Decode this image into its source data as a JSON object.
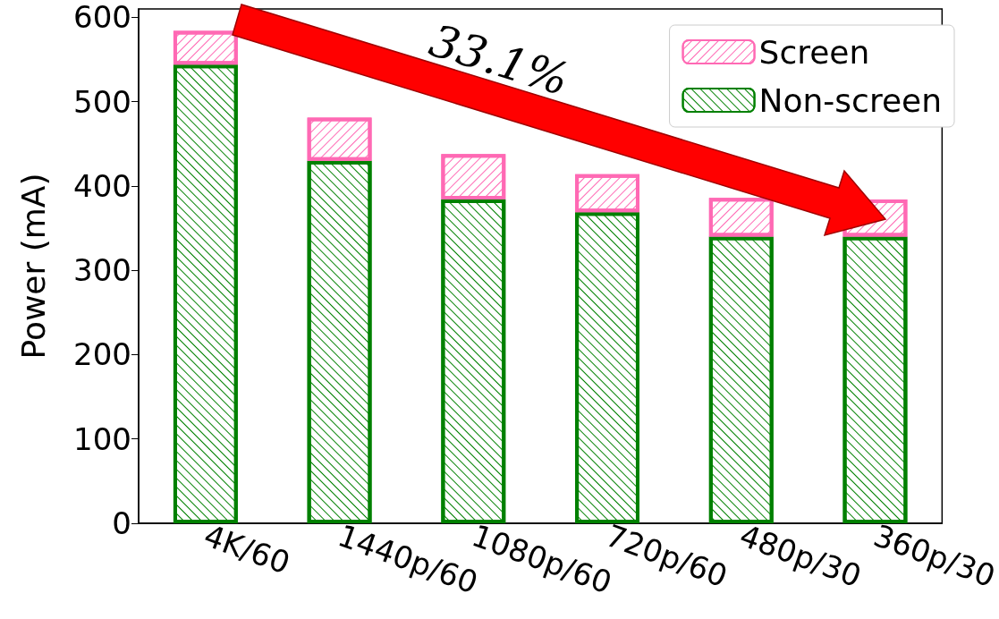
{
  "chart_data": {
    "type": "bar",
    "stacked": true,
    "ylabel": "Power (mA)",
    "categories": [
      "4K/60",
      "1440p/60",
      "1080p/60",
      "720p/60",
      "480p/30",
      "360p/30"
    ],
    "series": [
      {
        "name": "Non-screen",
        "color": "#008000",
        "values": [
          544,
          430,
          384,
          369,
          340,
          340
        ]
      },
      {
        "name": "Screen",
        "color": "#ff69b4",
        "values": [
          40,
          51,
          54,
          45,
          46,
          44
        ]
      }
    ],
    "ylim": [
      0,
      610
    ],
    "yticks": [
      0,
      100,
      200,
      300,
      400,
      500,
      600
    ],
    "grid": false,
    "legend": "top right",
    "annotations": [
      "33.1%"
    ]
  }
}
